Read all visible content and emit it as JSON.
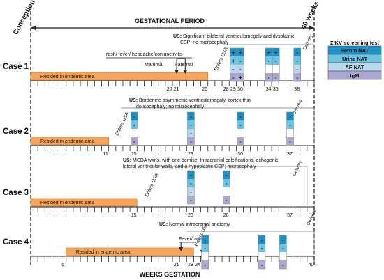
{
  "header": {
    "conception": "Conception",
    "period": "GESTATIONAL PERIOD",
    "weeks40": "40 weeks",
    "footer": "WEEKS GESTATION"
  },
  "legend": {
    "title": "ZIKV screening test",
    "serum": "Serum NAT",
    "urine": "Urine NAT",
    "af": "AF NAT",
    "igm": "IgM"
  },
  "colors": {
    "serum": "#1e90c6",
    "urine": "#6cc4e4",
    "af": "#b9d8ec",
    "igm": "#aaa7d0",
    "endemic": "#f5a65b"
  },
  "cases": [
    {
      "label": "Case 1",
      "us": "US:",
      "us_text": "Significant bilateral ventriculomegaly and dysplastic CSP; no microcephaly",
      "endemic": "Resided in endemic area",
      "enters": "Enters USA",
      "delivery": "Delivery",
      "symptoms": "rash/ fever/ headache/conjunctivitis",
      "maternal": "Maternal",
      "paternal": "Paternal",
      "weeks": [
        "20",
        "21",
        "25",
        "28",
        "29",
        "30",
        "34",
        "35",
        "38"
      ],
      "tests": [
        {
          "week": "29",
          "serum": "+",
          "urine": "+",
          "af": "-",
          "igm": "-"
        },
        {
          "week": "30",
          "serum": "+",
          "urine": "-",
          "af": "-",
          "igm": "+"
        },
        {
          "week": "34",
          "serum": "+",
          "urine": "-",
          "af": "",
          "igm": "-"
        },
        {
          "week": "35",
          "serum": "+",
          "urine": "-",
          "af": "",
          "igm": "-"
        },
        {
          "week": "38",
          "serum": "-",
          "urine": "-",
          "af": "-",
          "igm": "-"
        }
      ]
    },
    {
      "label": "Case 2",
      "us": "US:",
      "us_text": "Borderline asymmetric ventriculomegaly, cortex thin, dolicocephaly; no microcephaly",
      "endemic": "Resided in endemic area",
      "enters": "Enters USA",
      "delivery": "Delivery",
      "weeks": [
        "11",
        "15",
        "23",
        "30",
        "37"
      ],
      "tests": [
        {
          "week": "15",
          "serum": "-",
          "urine": "-",
          "af": "",
          "igm": "-"
        },
        {
          "week": "23",
          "serum": "-",
          "urine": "-",
          "af": "-",
          "igm": "-"
        },
        {
          "week": "30",
          "serum": "-",
          "urine": "-",
          "af": "",
          "igm": "-"
        },
        {
          "week": "37",
          "serum": "-",
          "urine": "-",
          "af": "",
          "igm": "-"
        }
      ]
    },
    {
      "label": "Case 3",
      "us": "US:",
      "us_text": "MCDA twins, with one demise. Intracranial calcifications, echogenic lateral ventricular walls, and a hypoplastic CSP; microcephaly",
      "endemic": "Resided in endemic area",
      "enters": "Enters USA",
      "delivery": "Delivery",
      "weeks": [
        "15",
        "23",
        "28",
        "37"
      ],
      "tests": [
        {
          "week": "23",
          "serum": "-",
          "urine": "-",
          "af": "-",
          "igm": "-"
        },
        {
          "week": "28",
          "serum": "-",
          "urine": "-",
          "af": "",
          "igm": "-"
        }
      ]
    },
    {
      "label": "Case 4",
      "us": "US:",
      "us_text": "Normal intracranial anatomy",
      "endemic": "Resided in endemic area",
      "enters": "Enters USA",
      "delivery": "Delivery",
      "symptoms": "Fever/rash",
      "weeks": [
        "5",
        "21",
        "23",
        "24",
        "25",
        "33",
        "36",
        "40"
      ],
      "tests": [
        {
          "week": "25",
          "serum": "-",
          "urine": "-",
          "af": "",
          "igm": "-"
        },
        {
          "week": "33",
          "serum": "-",
          "urine": "-",
          "af": "",
          "igm": "-"
        },
        {
          "week": "36",
          "serum": "-",
          "urine": "-",
          "af": "",
          "igm": "-"
        }
      ]
    }
  ]
}
